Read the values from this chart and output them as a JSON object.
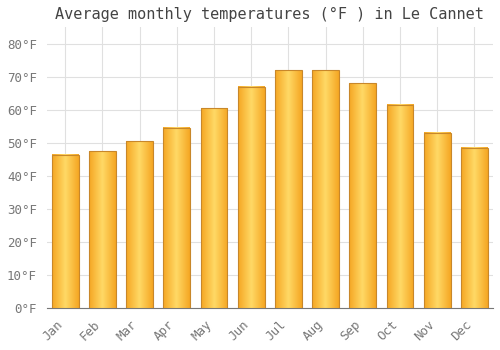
{
  "title": "Average monthly temperatures (°F ) in Le Cannet",
  "months": [
    "Jan",
    "Feb",
    "Mar",
    "Apr",
    "May",
    "Jun",
    "Jul",
    "Aug",
    "Sep",
    "Oct",
    "Nov",
    "Dec"
  ],
  "values": [
    46.5,
    47.5,
    50.5,
    54.5,
    60.5,
    67.0,
    72.0,
    72.0,
    68.0,
    61.5,
    53.0,
    48.5
  ],
  "bar_color_center": "#FFD966",
  "bar_color_edge": "#F5A623",
  "bar_outline_color": "#C8872A",
  "background_color": "#FFFFFF",
  "grid_color": "#E0E0E0",
  "ylim": [
    0,
    85
  ],
  "yticks": [
    0,
    10,
    20,
    30,
    40,
    50,
    60,
    70,
    80
  ],
  "title_fontsize": 11,
  "tick_fontsize": 9,
  "title_color": "#444444",
  "tick_color": "#777777",
  "bar_width": 0.72
}
